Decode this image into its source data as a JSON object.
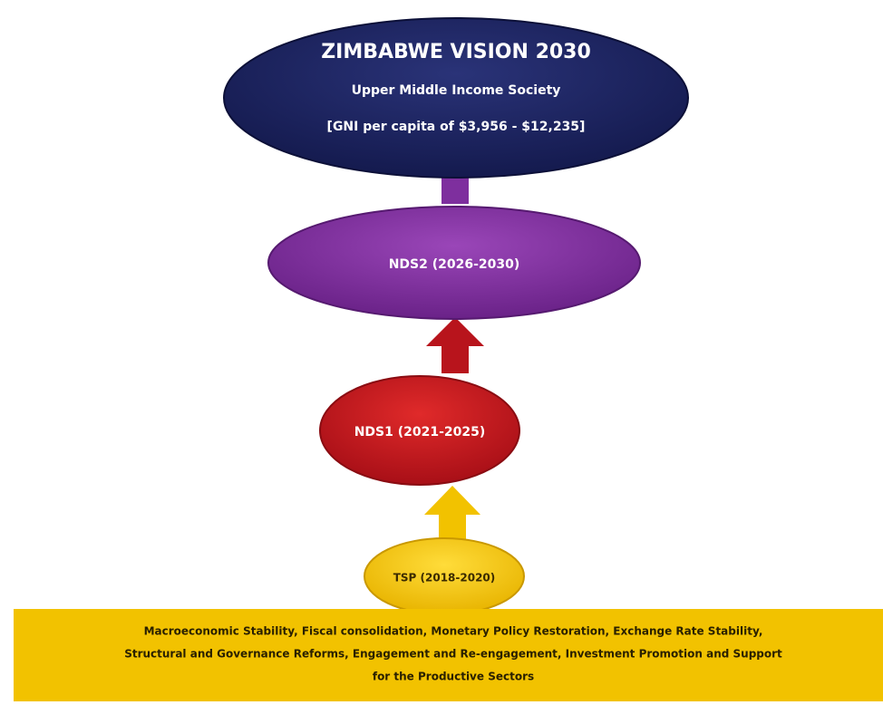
{
  "vision": {
    "title": "ZIMBABWE VISION 2030",
    "subtitle": "Upper Middle Income Society",
    "detail": "[GNI per capita of $3,956 - $12,235]"
  },
  "nodes": [
    {
      "label": "NDS2 (2026-2030)"
    },
    {
      "label": "NDS1 (2021-2025)"
    },
    {
      "label": "TSP (2018-2020)"
    }
  ],
  "foundation": {
    "lines": [
      "Macroeconomic Stability, Fiscal consolidation, Monetary Policy Restoration, Exchange Rate Stability,",
      "Structural and Governance Reforms, Engagement and Re-engagement, Investment Promotion and Support",
      "for the Productive Sectors"
    ]
  }
}
